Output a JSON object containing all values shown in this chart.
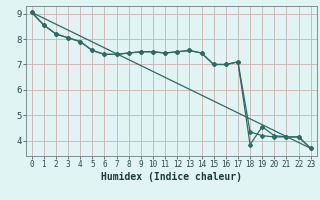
{
  "title": "",
  "xlabel": "Humidex (Indice chaleur)",
  "background_color": "#e0f4f4",
  "grid_color": "#d4b8b8",
  "line_color": "#2e6b60",
  "xlim": [
    -0.5,
    23.5
  ],
  "ylim": [
    3.4,
    9.3
  ],
  "yticks": [
    4,
    5,
    6,
    7,
    8,
    9
  ],
  "xticks": [
    0,
    1,
    2,
    3,
    4,
    5,
    6,
    7,
    8,
    9,
    10,
    11,
    12,
    13,
    14,
    15,
    16,
    17,
    18,
    19,
    20,
    21,
    22,
    23
  ],
  "line1_x": [
    0,
    1,
    2,
    3,
    4,
    5,
    6,
    7,
    8,
    9,
    10,
    11,
    12,
    13,
    14,
    15,
    16,
    17,
    18,
    19,
    20,
    21,
    22,
    23
  ],
  "line1_y": [
    9.05,
    8.55,
    8.2,
    8.05,
    7.9,
    7.55,
    7.4,
    7.4,
    7.45,
    7.5,
    7.5,
    7.45,
    7.5,
    7.55,
    7.45,
    7.0,
    7.0,
    7.1,
    3.85,
    4.55,
    4.2,
    4.15,
    4.15,
    3.7
  ],
  "line2_x": [
    0,
    1,
    2,
    3,
    4,
    5,
    6,
    7,
    8,
    9,
    10,
    11,
    12,
    13,
    14,
    15,
    16,
    17,
    18,
    19,
    20,
    21,
    22,
    23
  ],
  "line2_y": [
    9.05,
    8.55,
    8.2,
    8.05,
    7.9,
    7.55,
    7.4,
    7.4,
    7.45,
    7.5,
    7.5,
    7.45,
    7.5,
    7.55,
    7.45,
    7.0,
    7.0,
    7.1,
    4.35,
    4.2,
    4.15,
    4.15,
    4.15,
    3.7
  ],
  "line3_x": [
    0,
    23
  ],
  "line3_y": [
    9.05,
    3.7
  ],
  "xlabel_fontsize": 7,
  "tick_fontsize": 6,
  "markersize": 2.0
}
